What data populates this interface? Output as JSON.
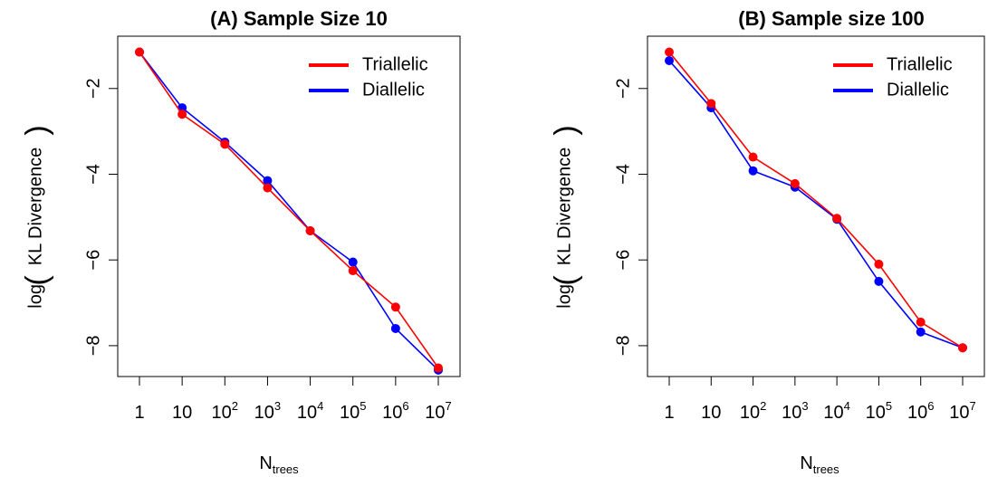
{
  "chart_data": [
    {
      "type": "line",
      "title": "(A)  Sample Size 10",
      "ylabel_prefix": "log",
      "ylabel_inner": "KL Divergence",
      "xlabel_main": "N",
      "xlabel_sub": "trees",
      "x_ticks": [
        {
          "base": "1",
          "exp": ""
        },
        {
          "base": "10",
          "exp": ""
        },
        {
          "base": "10",
          "exp": "2"
        },
        {
          "base": "10",
          "exp": "3"
        },
        {
          "base": "10",
          "exp": "4"
        },
        {
          "base": "10",
          "exp": "5"
        },
        {
          "base": "10",
          "exp": "6"
        },
        {
          "base": "10",
          "exp": "7"
        }
      ],
      "x": [
        1,
        10,
        100,
        1000,
        10000,
        100000,
        1000000,
        10000000
      ],
      "x_scale": "log10",
      "y_ticks": [
        "−2",
        "−4",
        "−6",
        "−8"
      ],
      "y_tick_values": [
        -2,
        -4,
        -6,
        -8
      ],
      "ylim": [
        -8.72,
        -0.78
      ],
      "grid": false,
      "legend": "top-right",
      "series": [
        {
          "name": "Triallelic",
          "color": "#ff0000",
          "values": [
            -1.15,
            -2.6,
            -3.3,
            -4.32,
            -5.32,
            -6.25,
            -7.1,
            -8.52
          ]
        },
        {
          "name": "Diallelic",
          "color": "#0000ff",
          "values": [
            -1.15,
            -2.45,
            -3.25,
            -4.15,
            -5.32,
            -6.05,
            -7.6,
            -8.57
          ]
        }
      ]
    },
    {
      "type": "line",
      "title": "(B)  Sample size 100",
      "ylabel_prefix": "log",
      "ylabel_inner": "KL Divergence",
      "xlabel_main": "N",
      "xlabel_sub": "trees",
      "x_ticks": [
        {
          "base": "1",
          "exp": ""
        },
        {
          "base": "10",
          "exp": ""
        },
        {
          "base": "10",
          "exp": "2"
        },
        {
          "base": "10",
          "exp": "3"
        },
        {
          "base": "10",
          "exp": "4"
        },
        {
          "base": "10",
          "exp": "5"
        },
        {
          "base": "10",
          "exp": "6"
        },
        {
          "base": "10",
          "exp": "7"
        }
      ],
      "x": [
        1,
        10,
        100,
        1000,
        10000,
        100000,
        1000000,
        10000000
      ],
      "x_scale": "log10",
      "y_ticks": [
        "−2",
        "−4",
        "−6",
        "−8"
      ],
      "y_tick_values": [
        -2,
        -4,
        -6,
        -8
      ],
      "ylim": [
        -8.72,
        -0.78
      ],
      "grid": false,
      "legend": "top-right",
      "series": [
        {
          "name": "Triallelic",
          "color": "#ff0000",
          "values": [
            -1.15,
            -2.35,
            -3.6,
            -4.22,
            -5.03,
            -6.1,
            -7.45,
            -8.05
          ]
        },
        {
          "name": "Diallelic",
          "color": "#0000ff",
          "values": [
            -1.35,
            -2.45,
            -3.92,
            -4.3,
            -5.05,
            -6.5,
            -7.68,
            -8.05
          ]
        }
      ]
    }
  ]
}
